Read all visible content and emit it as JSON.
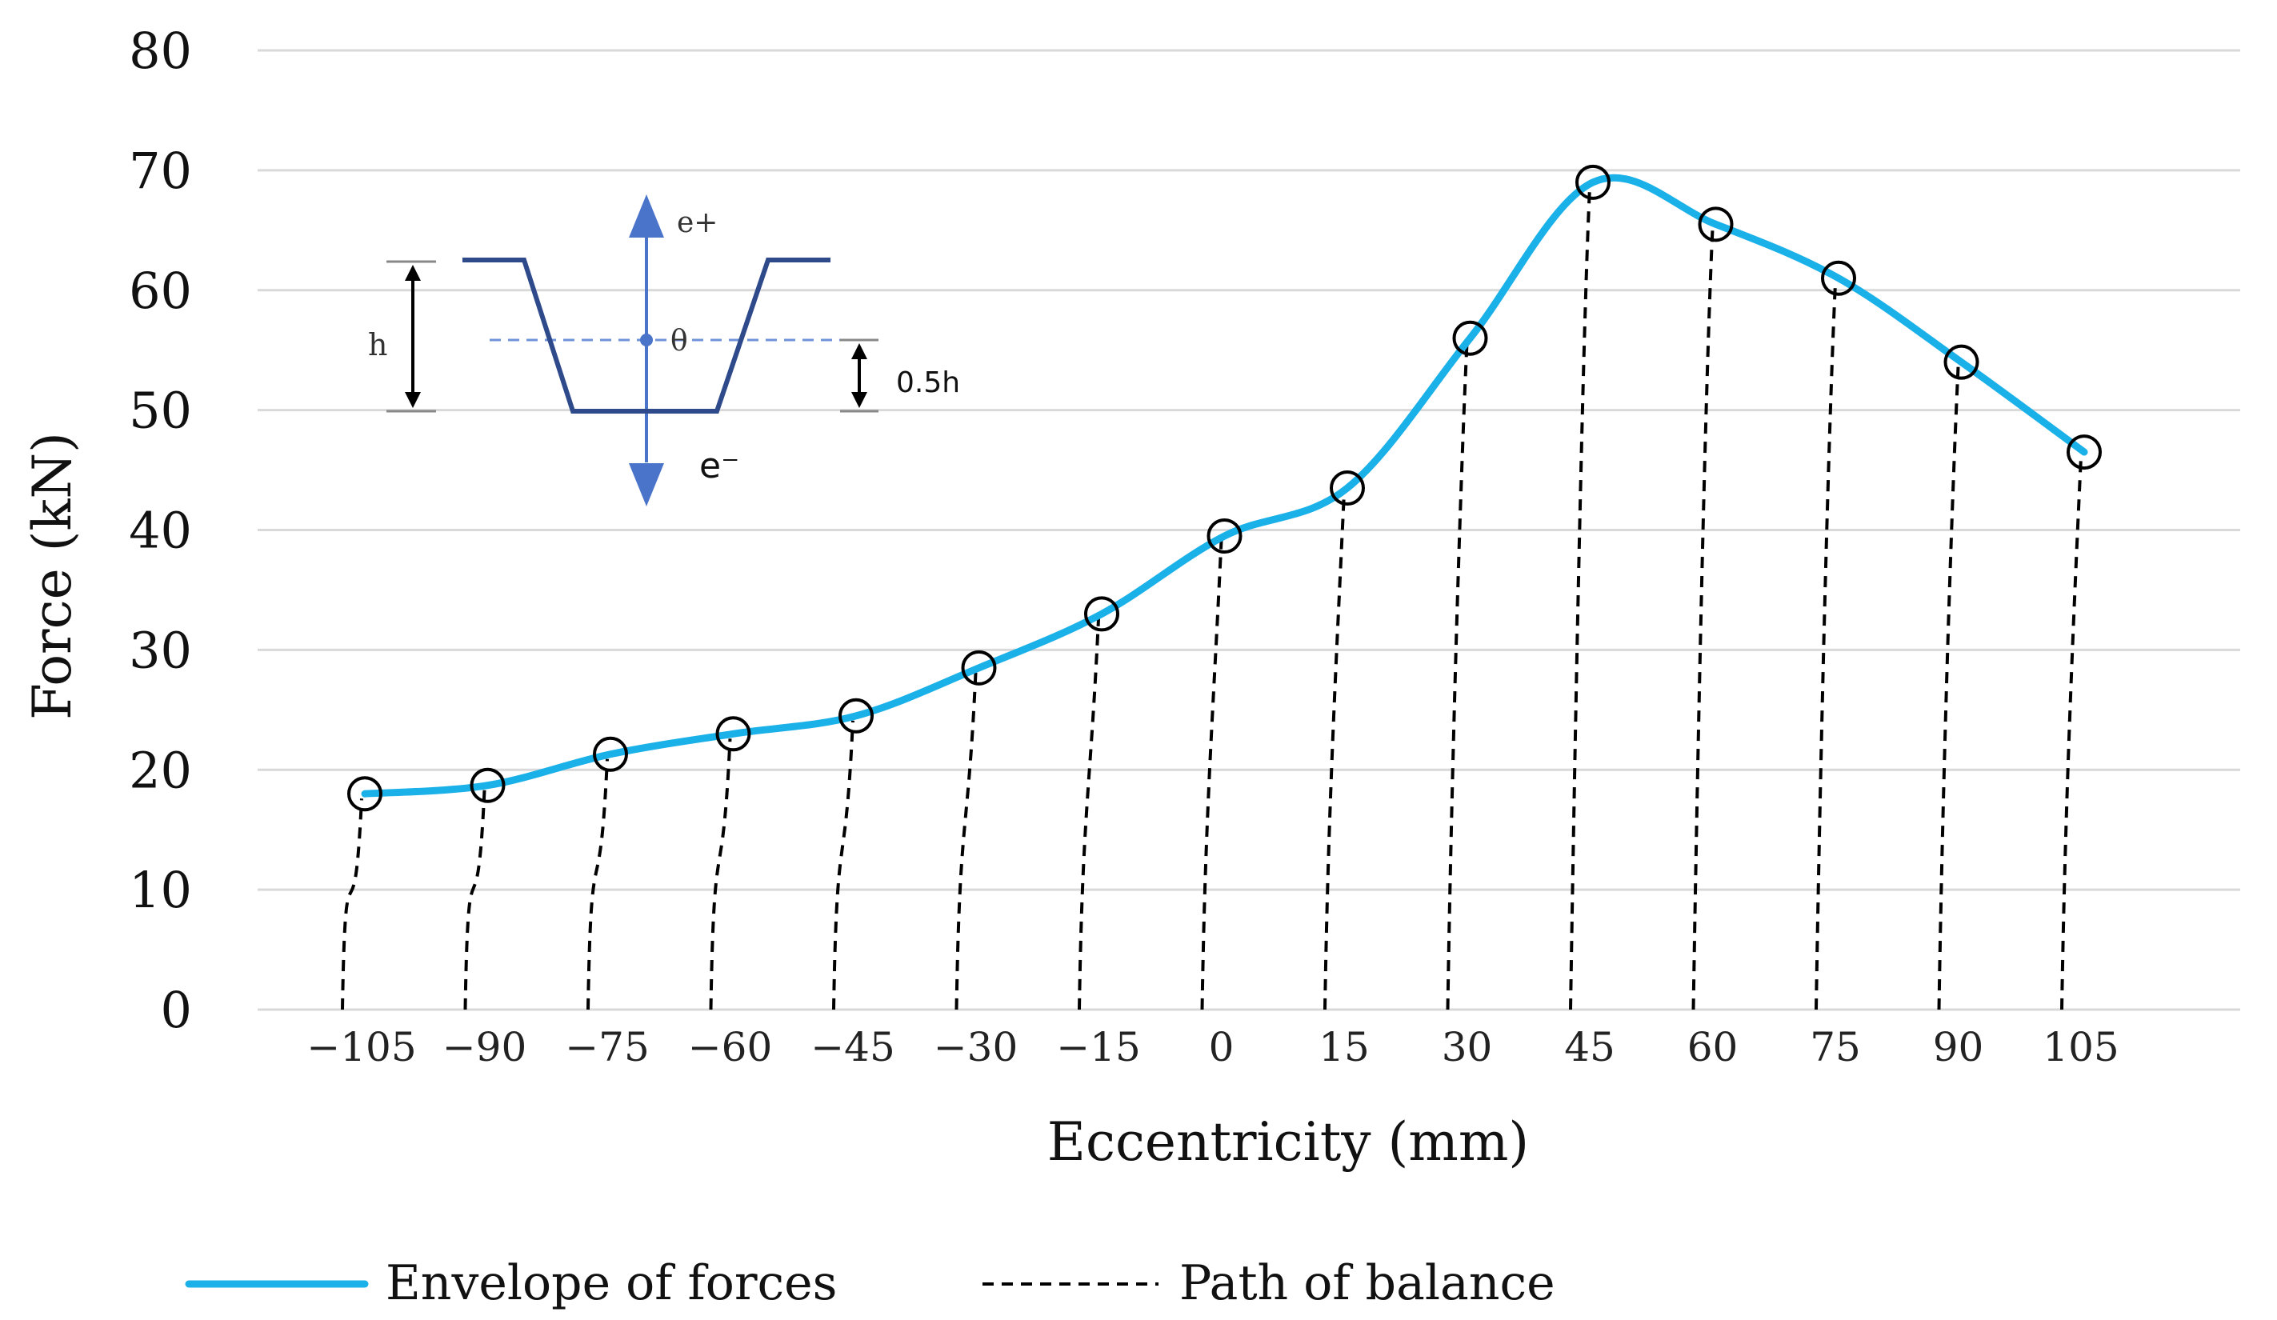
{
  "chart_data": {
    "type": "line",
    "title": "",
    "xlabel": "Eccentricity (mm)",
    "ylabel": "Force (kN)",
    "ylim": [
      0,
      80
    ],
    "yticks": [
      "0",
      "10",
      "20",
      "30",
      "40",
      "50",
      "60",
      "70",
      "80"
    ],
    "xticks": [
      "−105",
      "−90",
      "−75",
      "−60",
      "−45",
      "−30",
      "−15",
      "0",
      "15",
      "30",
      "45",
      "60",
      "75",
      "90",
      "105"
    ],
    "grid": true,
    "legend_position": "bottom",
    "series": [
      {
        "name": "Envelope of forces",
        "style": "solid",
        "color": "#1ab0e8",
        "points": [
          {
            "x": "−105",
            "y": 18.0
          },
          {
            "x": "−90",
            "y": 18.7
          },
          {
            "x": "−75",
            "y": 21.3
          },
          {
            "x": "−60",
            "y": 23.0
          },
          {
            "x": "−45",
            "y": 24.5
          },
          {
            "x": "−30",
            "y": 28.5
          },
          {
            "x": "−15",
            "y": 33.0
          },
          {
            "x": "0",
            "y": 39.5
          },
          {
            "x": "15",
            "y": 43.5
          },
          {
            "x": "30",
            "y": 56.0
          },
          {
            "x": "45",
            "y": 69.0
          },
          {
            "x": "60",
            "y": 65.5
          },
          {
            "x": "75",
            "y": 61.0
          },
          {
            "x": "90",
            "y": 54.0
          },
          {
            "x": "105",
            "y": 46.5
          }
        ]
      },
      {
        "name": "Path of balance",
        "style": "dashed",
        "color": "#000000"
      }
    ],
    "inset": {
      "label_e_plus": "e+",
      "label_e_minus": "e⁻",
      "label_theta": "θ",
      "label_h": "h",
      "label_half_h": "0.5h",
      "profile_color": "#2e4a8a",
      "arrow_color": "#4a74c9"
    }
  }
}
